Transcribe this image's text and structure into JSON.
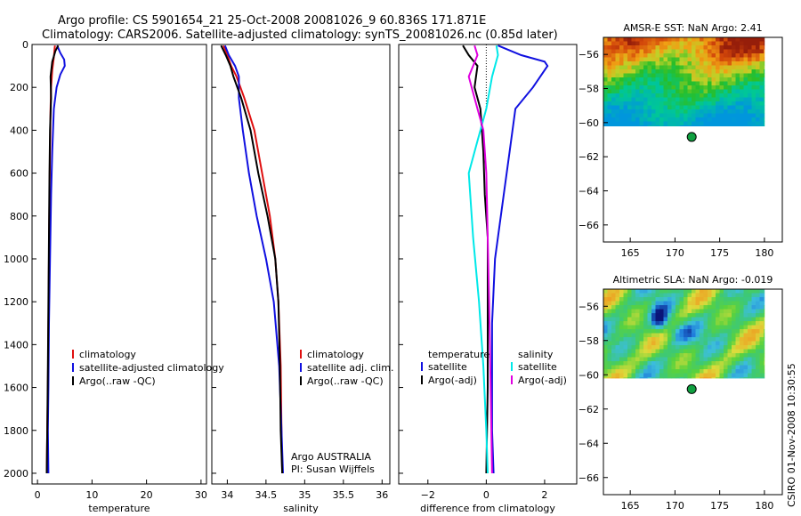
{
  "figure": {
    "title_line1": "Argo profile: CS 5901654_21 25-Oct-2008 20081026_9 60.836S 171.871E",
    "title_line2": "Climatology: CARS2006. Satellite-adjusted climatology: synTS_20081026.nc (0.85d later)",
    "footer": "CSIRO 01-Nov-2008 10:30:55",
    "float_info": [
      "Argo AUSTRALIA",
      "PI: Susan Wijffels"
    ]
  },
  "colors": {
    "climatology": "#e01010",
    "satellite": "#1010e0",
    "argo": "#000000",
    "sat_diff": "#00e8e8",
    "argo_diff": "#e000e0",
    "dot": "#10a040"
  },
  "chart_data": [
    {
      "type": "line",
      "xlabel": "temperature",
      "xlim": [
        -1,
        31
      ],
      "ylim": [
        2050,
        0
      ],
      "xticks": [
        0,
        10,
        20,
        30
      ],
      "yticks": [
        0,
        200,
        400,
        600,
        800,
        1000,
        1200,
        1400,
        1600,
        1800,
        2000
      ],
      "legend": [
        "climatology",
        "satellite-adjusted climatology",
        "Argo(..raw -QC)"
      ],
      "series": [
        {
          "name": "climatology",
          "x": [
            3.2,
            3.0,
            2.7,
            2.5,
            2.4,
            2.3,
            2.2,
            2.1,
            2.0,
            1.9,
            1.8,
            1.7
          ],
          "y": [
            5,
            60,
            120,
            200,
            300,
            500,
            700,
            1000,
            1300,
            1600,
            1800,
            2000
          ]
        },
        {
          "name": "satellite-adjusted climatology",
          "x": [
            3.6,
            4.2,
            4.9,
            5.0,
            4.2,
            3.5,
            3.0,
            2.7,
            2.5,
            2.3,
            2.1,
            2.0,
            1.9,
            2.0
          ],
          "y": [
            5,
            40,
            70,
            100,
            140,
            200,
            300,
            500,
            700,
            1000,
            1300,
            1600,
            1800,
            2000
          ]
        },
        {
          "name": "Argo(..raw -QC)",
          "x": [
            3.8,
            3.3,
            2.7,
            2.4,
            2.5,
            2.3,
            2.2,
            2.1,
            2.0,
            1.9,
            1.8,
            1.7
          ],
          "y": [
            5,
            30,
            80,
            150,
            250,
            400,
            600,
            900,
            1200,
            1500,
            1800,
            2000
          ]
        }
      ]
    },
    {
      "type": "line",
      "xlabel": "salinity",
      "xlim": [
        33.8,
        36.1
      ],
      "ylim": [
        2050,
        0
      ],
      "xticks": [
        34,
        34.5,
        35,
        35.5,
        36
      ],
      "xticklabels": [
        "34",
        "34.5",
        "35",
        "35.5",
        "36"
      ],
      "yticks": [
        0,
        200,
        400,
        600,
        800,
        1000,
        1200,
        1400,
        1600,
        1800,
        2000
      ],
      "legend": [
        "climatology",
        "satellite adj. clim.",
        "Argo(..raw -QC)"
      ],
      "series": [
        {
          "name": "climatology",
          "x": [
            33.95,
            34.0,
            34.05,
            34.12,
            34.22,
            34.35,
            34.45,
            34.55,
            34.62,
            34.66,
            34.69,
            34.7,
            34.71
          ],
          "y": [
            5,
            50,
            100,
            150,
            250,
            400,
            600,
            800,
            1000,
            1200,
            1500,
            1800,
            2000
          ]
        },
        {
          "name": "satellite adj. clim.",
          "x": [
            33.97,
            34.02,
            34.1,
            34.15,
            34.15,
            34.2,
            34.28,
            34.38,
            34.5,
            34.6,
            34.67,
            34.7,
            34.72
          ],
          "y": [
            5,
            50,
            100,
            150,
            250,
            400,
            600,
            800,
            1000,
            1200,
            1500,
            1800,
            2000
          ]
        },
        {
          "name": "Argo(..raw -QC)",
          "x": [
            33.92,
            33.98,
            34.04,
            34.08,
            34.18,
            34.3,
            34.4,
            34.52,
            34.62,
            34.66,
            34.68,
            34.69,
            34.71
          ],
          "y": [
            5,
            50,
            100,
            150,
            250,
            400,
            600,
            800,
            1000,
            1200,
            1500,
            1800,
            2000
          ]
        }
      ]
    },
    {
      "type": "line",
      "xlabel": "difference from climatology",
      "xlim": [
        -3,
        3.1
      ],
      "ylim": [
        2050,
        0
      ],
      "xticks": [
        -2,
        0,
        2
      ],
      "yticks": [
        0,
        200,
        400,
        600,
        800,
        1000,
        1200,
        1400,
        1600,
        1800,
        2000
      ],
      "legend_left_title": "temperature",
      "legend_right_title": "salinity",
      "legend": [
        "satellite",
        "Argo(-adj)",
        "satellite",
        "Argo(-adj)"
      ],
      "series": [
        {
          "name": "temperature satellite",
          "x": [
            0.4,
            1.2,
            2.0,
            2.1,
            1.6,
            1.0,
            0.8,
            0.6,
            0.3,
            0.2,
            0.2,
            0.2,
            0.25
          ],
          "y": [
            5,
            50,
            80,
            100,
            200,
            300,
            500,
            700,
            1000,
            1300,
            1600,
            1800,
            2000
          ]
        },
        {
          "name": "temperature Argo(-adj)",
          "x": [
            -0.8,
            -0.6,
            -0.3,
            -0.4,
            -0.2,
            -0.1,
            -0.05,
            0.05,
            0.05,
            0.05,
            0.0
          ],
          "y": [
            5,
            50,
            100,
            200,
            300,
            500,
            700,
            900,
            1200,
            1600,
            2000
          ]
        },
        {
          "name": "salinity satellite",
          "x": [
            0.35,
            0.4,
            0.2,
            0.0,
            -0.3,
            -0.6,
            -0.45,
            -0.25,
            -0.1,
            0.0,
            0.05
          ],
          "y": [
            5,
            50,
            150,
            300,
            450,
            600,
            900,
            1200,
            1500,
            1800,
            2000
          ]
        },
        {
          "name": "salinity Argo(-adj)",
          "x": [
            -0.4,
            -0.3,
            -0.6,
            -0.4,
            -0.1,
            0.0,
            0.05,
            0.1,
            0.15,
            0.2
          ],
          "y": [
            5,
            50,
            150,
            250,
            400,
            600,
            900,
            1200,
            1600,
            2000
          ]
        }
      ]
    },
    {
      "type": "heatmap",
      "title": "AMSR-E SST: NaN Argo: 2.41",
      "xlim": [
        162,
        182
      ],
      "ylim": [
        -67,
        -55
      ],
      "xticks": [
        165,
        170,
        175,
        180
      ],
      "yticks": [
        -56,
        -58,
        -60,
        -62,
        -64,
        -66
      ],
      "field_extent": {
        "lon": [
          162,
          180
        ],
        "lat": [
          -60.2,
          -55
        ]
      },
      "point": {
        "lon": 171.87,
        "lat": -60.84
      }
    },
    {
      "type": "heatmap",
      "title": "Altimetric SLA: NaN Argo: -0.019",
      "xlim": [
        162,
        182
      ],
      "ylim": [
        -67,
        -55
      ],
      "xticks": [
        165,
        170,
        175,
        180
      ],
      "yticks": [
        -56,
        -58,
        -60,
        -62,
        -64,
        -66
      ],
      "field_extent": {
        "lon": [
          162,
          180
        ],
        "lat": [
          -60.2,
          -55
        ]
      },
      "point": {
        "lon": 171.87,
        "lat": -60.84
      }
    }
  ]
}
